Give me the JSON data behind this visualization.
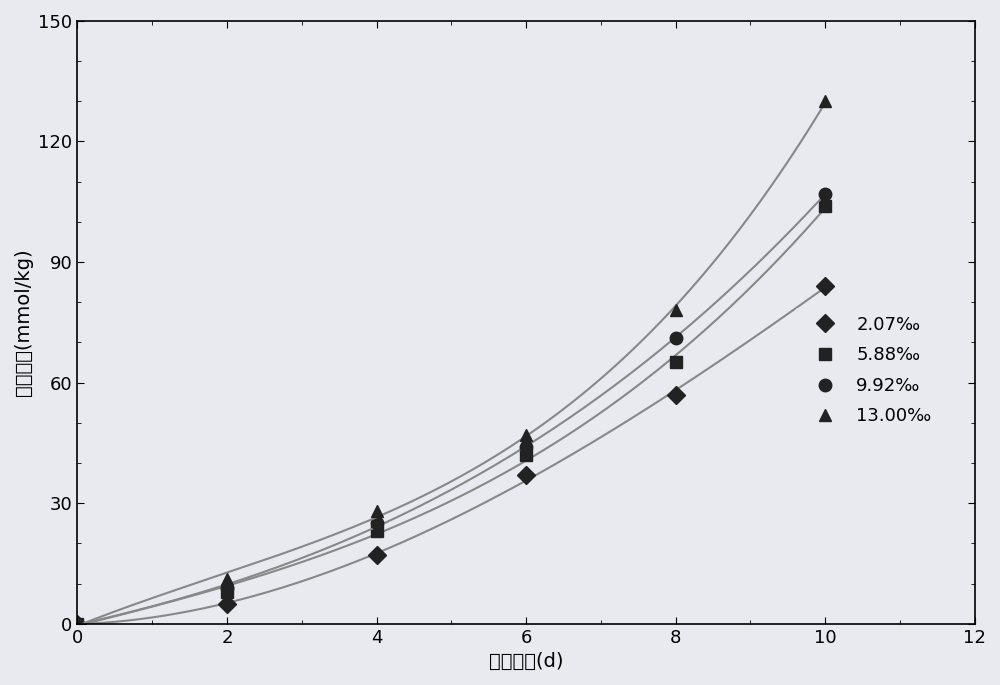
{
  "series": [
    {
      "label": "2.07‰",
      "x": [
        0,
        2,
        4,
        6,
        8,
        10
      ],
      "y": [
        0,
        5,
        17,
        37,
        57,
        84
      ],
      "marker": "D",
      "color": "#222222",
      "linecolor": "#888888"
    },
    {
      "label": "5.88‰",
      "x": [
        0,
        2,
        4,
        6,
        8,
        10
      ],
      "y": [
        0,
        8,
        23,
        42,
        65,
        104
      ],
      "marker": "s",
      "color": "#222222",
      "linecolor": "#888888"
    },
    {
      "label": "9.92‰",
      "x": [
        0,
        2,
        4,
        6,
        8,
        10
      ],
      "y": [
        0,
        9,
        25,
        44,
        71,
        107
      ],
      "marker": "o",
      "color": "#222222",
      "linecolor": "#888888"
    },
    {
      "label": "13.00‰",
      "x": [
        0,
        2,
        4,
        6,
        8,
        10
      ],
      "y": [
        0,
        11,
        28,
        47,
        78,
        130
      ],
      "marker": "^",
      "color": "#222222",
      "linecolor": "#888888"
    }
  ],
  "xlabel": "加热时间(d)",
  "ylabel": "过氧化値(mmol/kg)",
  "xlim": [
    0,
    12
  ],
  "ylim": [
    0,
    150
  ],
  "xticks": [
    0,
    2,
    4,
    6,
    8,
    10,
    12
  ],
  "yticks": [
    0,
    30,
    60,
    90,
    120,
    150
  ],
  "background_color": "#e8eaf0",
  "title_fontsize": 14,
  "label_fontsize": 14,
  "tick_fontsize": 13,
  "legend_fontsize": 13,
  "marker_size": 9,
  "line_width": 1.5
}
